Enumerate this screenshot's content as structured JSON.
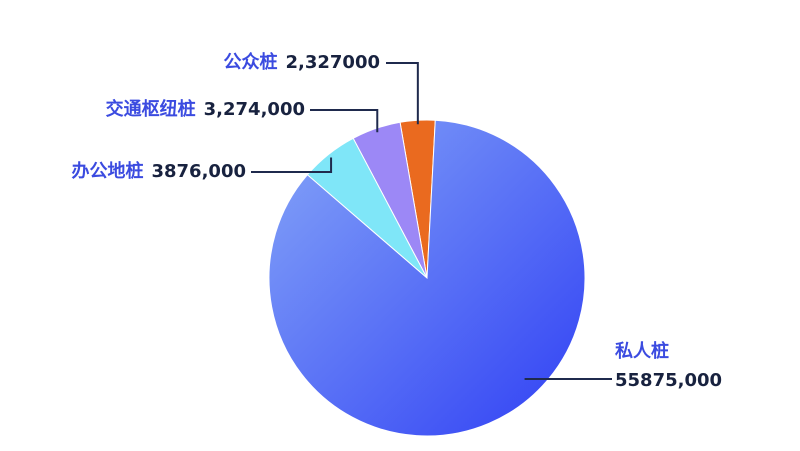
{
  "chart_data": {
    "type": "pie",
    "categories": [
      "公众桩",
      "交通枢纽桩",
      "办公地桩",
      "私人桩"
    ],
    "values": [
      2327000,
      3274000,
      3876000,
      55875000
    ],
    "value_labels": [
      "2,327000",
      "3,274,000",
      "3876,000",
      "55875,000"
    ],
    "colors": [
      "#ea6a1f",
      "#9c88f6",
      "#7fe6f8",
      "#4a62f6"
    ]
  }
}
